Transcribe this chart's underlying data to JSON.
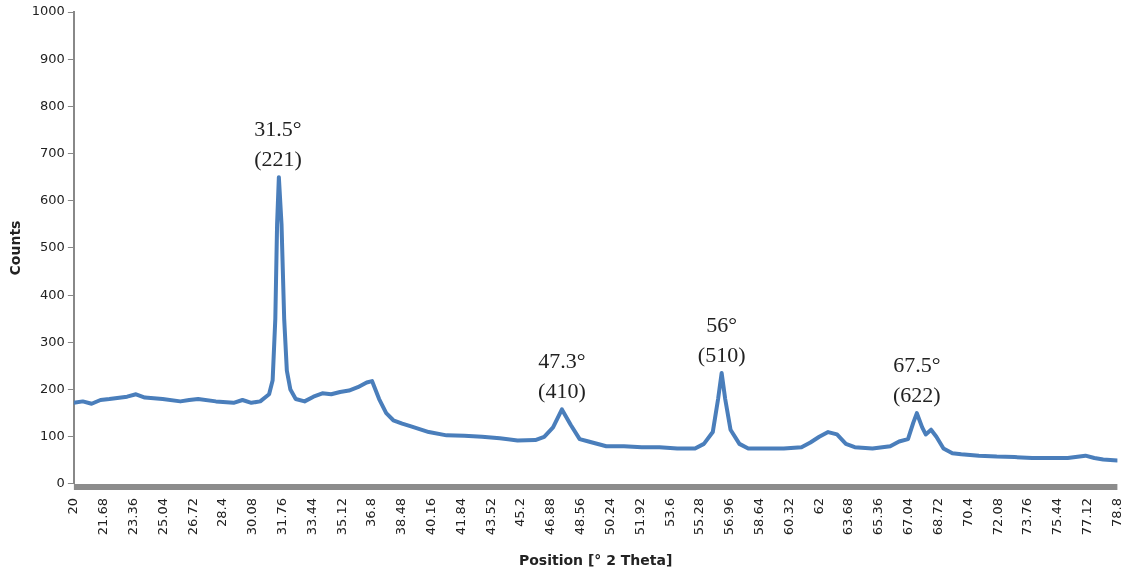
{
  "chart_data": {
    "type": "line",
    "xlabel": "Position [° 2 Theta]",
    "ylabel": "Counts",
    "x": [
      20,
      20.5,
      21,
      21.5,
      22,
      23,
      23.5,
      24,
      25,
      26,
      26.5,
      27,
      28,
      29,
      29.5,
      30,
      30.5,
      31,
      31.2,
      31.35,
      31.45,
      31.55,
      31.7,
      31.85,
      32,
      32.2,
      32.5,
      33,
      33.5,
      34,
      34.5,
      35,
      35.5,
      36,
      36.5,
      36.8,
      37.2,
      37.6,
      38,
      38.5,
      39,
      40,
      41,
      42,
      43,
      44,
      45,
      46,
      46.5,
      47,
      47.5,
      48,
      48.5,
      49,
      50,
      51,
      52,
      53,
      54,
      55,
      55.5,
      56,
      56.3,
      56.5,
      56.7,
      57,
      57.5,
      58,
      59,
      60,
      61,
      61.5,
      62,
      62.5,
      63,
      63.5,
      64,
      65,
      66,
      66.5,
      67,
      67.3,
      67.5,
      67.8,
      68,
      68.3,
      68.6,
      69,
      69.5,
      70,
      71,
      72,
      73,
      74,
      75,
      76,
      77,
      77.5,
      78,
      78.8
    ],
    "series": [
      {
        "color": "#4a7ebb",
        "values": [
          172,
          175,
          170,
          178,
          180,
          185,
          190,
          183,
          180,
          175,
          178,
          180,
          175,
          172,
          178,
          172,
          175,
          190,
          220,
          350,
          550,
          650,
          550,
          350,
          240,
          200,
          180,
          175,
          185,
          192,
          190,
          195,
          198,
          205,
          215,
          218,
          180,
          150,
          135,
          128,
          122,
          110,
          103,
          102,
          100,
          97,
          92,
          93,
          100,
          120,
          158,
          125,
          95,
          90,
          80,
          80,
          78,
          78,
          75,
          75,
          85,
          110,
          180,
          235,
          180,
          115,
          85,
          75,
          75,
          75,
          78,
          88,
          100,
          110,
          105,
          85,
          78,
          75,
          80,
          90,
          95,
          130,
          150,
          120,
          105,
          115,
          100,
          75,
          65,
          63,
          60,
          58,
          57,
          55,
          55,
          55,
          60,
          55,
          52,
          50
        ]
      }
    ],
    "xlim": [
      20,
      78.8
    ],
    "xticks": [
      20,
      21.68,
      23.36,
      25.04,
      26.72,
      28.4,
      30.08,
      31.76,
      33.44,
      35.12,
      36.8,
      38.48,
      40.16,
      41.84,
      43.52,
      45.2,
      46.88,
      48.56,
      50.24,
      51.92,
      53.6,
      55.28,
      56.96,
      58.64,
      60.32,
      62,
      63.68,
      65.36,
      67.04,
      68.72,
      70.4,
      72.08,
      73.76,
      75.44,
      77.12,
      78.8
    ],
    "ylim": [
      0,
      1000
    ],
    "yticks": [
      0,
      100,
      200,
      300,
      400,
      500,
      600,
      700,
      800,
      900,
      1000
    ],
    "grid": false,
    "legend": false,
    "marker": "none",
    "line_style": "solid",
    "annotations": [
      {
        "text": "31.5°\n(221)",
        "x": 31.5,
        "y": 650
      },
      {
        "text": "47.3°\n(410)",
        "x": 47.5,
        "y": 158
      },
      {
        "text": "56°\n(510)",
        "x": 56.5,
        "y": 235
      },
      {
        "text": "67.5°\n(622)",
        "x": 67.5,
        "y": 150
      }
    ]
  }
}
